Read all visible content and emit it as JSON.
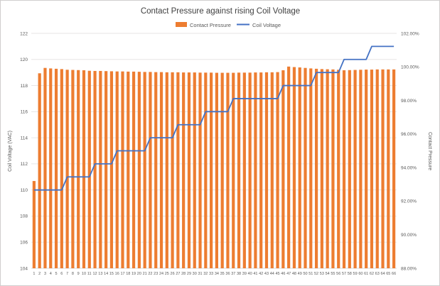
{
  "chart_data": {
    "type": "combo",
    "title": "Contact Pressure against rising Coil Voltage",
    "legend_position": "top",
    "grid": true,
    "categories": [
      1,
      2,
      3,
      4,
      5,
      6,
      7,
      8,
      9,
      10,
      11,
      12,
      13,
      14,
      15,
      16,
      17,
      18,
      19,
      20,
      21,
      22,
      23,
      24,
      25,
      26,
      27,
      28,
      29,
      30,
      31,
      32,
      33,
      34,
      35,
      36,
      37,
      38,
      39,
      40,
      41,
      42,
      43,
      44,
      45,
      46,
      47,
      48,
      49,
      50,
      51,
      52,
      53,
      54,
      55,
      56,
      57,
      58,
      59,
      60,
      61,
      62,
      63,
      64,
      65,
      66
    ],
    "series": [
      {
        "name": "Contact Pressure",
        "type": "bar",
        "axis": "right",
        "color": "#ED7D31",
        "unit": "%",
        "values": [
          93.2,
          99.62,
          99.94,
          99.91,
          99.89,
          99.87,
          99.83,
          99.82,
          99.81,
          99.8,
          99.77,
          99.76,
          99.76,
          99.75,
          99.74,
          99.73,
          99.73,
          99.72,
          99.72,
          99.71,
          99.7,
          99.7,
          99.69,
          99.69,
          99.68,
          99.68,
          99.68,
          99.67,
          99.67,
          99.67,
          99.66,
          99.66,
          99.66,
          99.65,
          99.65,
          99.65,
          99.65,
          99.66,
          99.66,
          99.66,
          99.67,
          99.67,
          99.68,
          99.68,
          99.69,
          99.8,
          100.02,
          99.99,
          99.97,
          99.94,
          99.91,
          99.89,
          99.87,
          99.86,
          99.85,
          99.83,
          99.8,
          99.81,
          99.82,
          99.83,
          99.84,
          99.84,
          99.85,
          99.85,
          99.85,
          99.85
        ]
      },
      {
        "name": "Coil Voltage",
        "type": "line",
        "axis": "left",
        "color": "#4472C4",
        "unit": "VAC",
        "values": [
          110,
          110,
          110,
          110,
          110,
          110,
          111,
          111,
          111,
          111,
          111,
          112,
          112,
          112,
          112,
          113,
          113,
          113,
          113,
          113,
          113,
          114,
          114,
          114,
          114,
          114,
          115,
          115,
          115,
          115,
          115,
          116,
          116,
          116,
          116,
          116,
          117,
          117,
          117,
          117,
          117,
          117,
          117,
          117,
          117,
          118,
          118,
          118,
          118,
          118,
          118,
          119,
          119,
          119,
          119,
          119,
          120,
          120,
          120,
          120,
          120,
          121,
          121,
          121,
          121,
          121
        ]
      }
    ],
    "left_axis": {
      "label": "Coil Voltage (VAC)",
      "min": 104,
      "max": 122,
      "step": 2,
      "tick_labels": [
        "122",
        "120",
        "118",
        "116",
        "114",
        "112",
        "110",
        "108",
        "106",
        "104"
      ]
    },
    "right_axis": {
      "label": "Contact Pressure",
      "min": 88,
      "max": 102,
      "step": 2,
      "tick_labels": [
        "102.00%",
        "100.00%",
        "98.00%",
        "96.00%",
        "94.00%",
        "92.00%",
        "90.00%",
        "88.00%"
      ]
    },
    "colors": {
      "gridline": "#E7E6E6",
      "axis_line": "#D9D9D9",
      "text": "#595959"
    }
  }
}
